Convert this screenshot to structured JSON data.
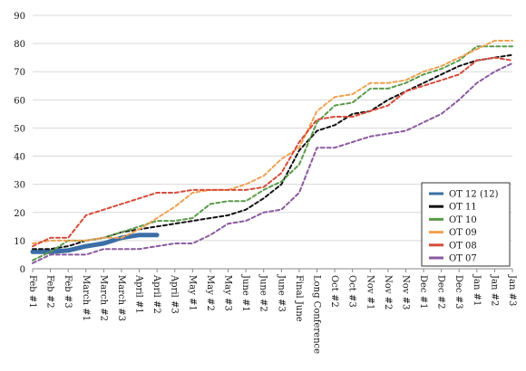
{
  "chart_data": {
    "type": "line",
    "title": "",
    "xlabel": "",
    "ylabel": "",
    "ylim": [
      0,
      90
    ],
    "yticks": [
      0,
      10,
      20,
      30,
      40,
      50,
      60,
      70,
      80,
      90
    ],
    "grid": "horizontal",
    "legend_position": "right",
    "categories": [
      "Feb #1",
      "Feb #2",
      "Feb #3",
      "March #1",
      "March #2",
      "March #3",
      "April #1",
      "April #2",
      "April #3",
      "May #1",
      "May #2",
      "May #3",
      "June #1",
      "June #2",
      "June #3",
      "Final June",
      "Long Conference",
      "Oct #2",
      "Oct #3",
      "Nov #1",
      "Nov #2",
      "Nov #3",
      "Dec #1",
      "Dec #2",
      "Dec #3",
      "Jan #1",
      "Jan #2",
      "Jan #3"
    ],
    "series": [
      {
        "name": "OT 12 (12)",
        "color": "#3b6ea5",
        "style": "solid-thick",
        "values": [
          6,
          6,
          6.5,
          8,
          9,
          11,
          12,
          12,
          null,
          null,
          null,
          null,
          null,
          null,
          null,
          null,
          null,
          null,
          null,
          null,
          null,
          null,
          null,
          null,
          null,
          null,
          null,
          null
        ]
      },
      {
        "name": "OT 11",
        "color": "#111111",
        "style": "dashed",
        "values": [
          7,
          7,
          8,
          10,
          11,
          13,
          14,
          15,
          16,
          17,
          18,
          19,
          21,
          25,
          30,
          42,
          49,
          51,
          55,
          56,
          60,
          63,
          66,
          69,
          72,
          74,
          75,
          76
        ]
      },
      {
        "name": "OT 10",
        "color": "#5b9a4a",
        "style": "dashed",
        "values": [
          3,
          6,
          10,
          10,
          11,
          13,
          15,
          17,
          17,
          18,
          23,
          24,
          24,
          28,
          31,
          37,
          52,
          58,
          59,
          64,
          64,
          66,
          69,
          71,
          74,
          79,
          79,
          79
        ]
      },
      {
        "name": "OT 09",
        "color": "#f0a050",
        "style": "dashed",
        "values": [
          9,
          10,
          10,
          10,
          11,
          11,
          14,
          18,
          22,
          27,
          28,
          28,
          30,
          33,
          39,
          43,
          56,
          61,
          62,
          66,
          66,
          67,
          70,
          72,
          75,
          78,
          81,
          81
        ]
      },
      {
        "name": "OT 08",
        "color": "#d64a3a",
        "style": "dashed",
        "values": [
          8,
          11,
          11,
          19,
          21,
          23,
          25,
          27,
          27,
          28,
          28,
          28,
          28,
          29,
          34,
          45,
          53,
          54,
          54,
          56,
          58,
          63,
          65,
          67,
          69,
          74,
          75,
          74
        ]
      },
      {
        "name": "OT 07",
        "color": "#8b5a9e",
        "style": "dashed",
        "values": [
          2,
          5,
          5,
          5,
          7,
          7,
          7,
          8,
          9,
          9,
          12,
          16,
          17,
          20,
          21,
          27,
          43,
          43,
          45,
          47,
          48,
          49,
          52,
          55,
          60,
          66,
          70,
          73
        ]
      }
    ]
  }
}
